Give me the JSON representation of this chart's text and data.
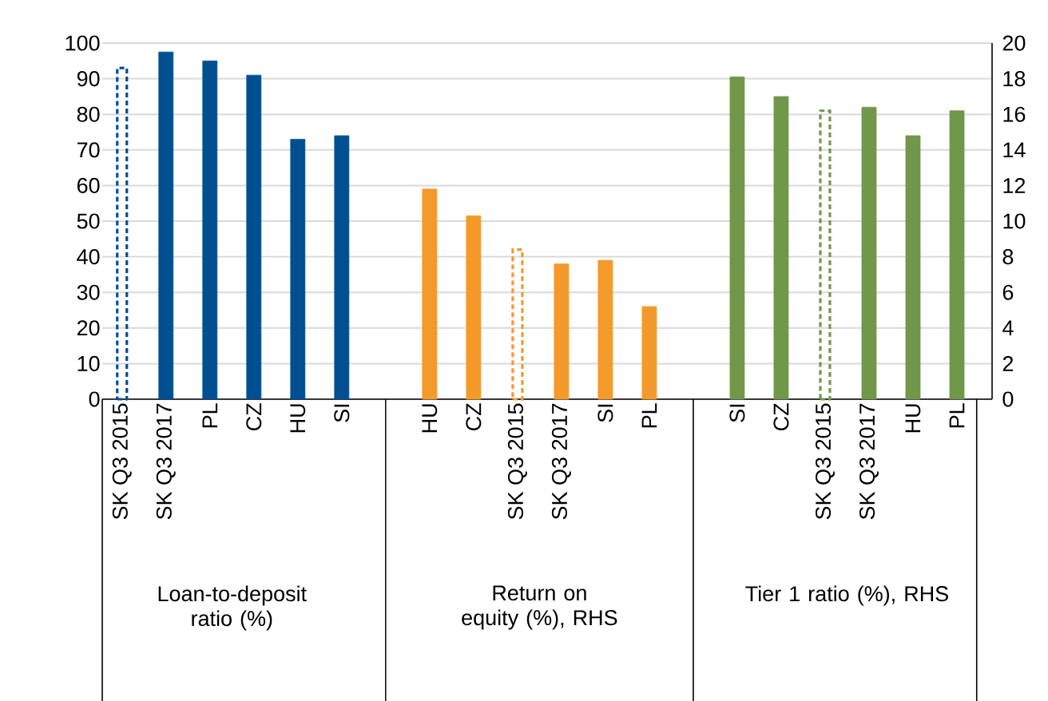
{
  "chart_data": {
    "type": "bar",
    "categories": [
      "SK Q3 2015",
      "SK Q3 2017",
      "PL",
      "CZ",
      "HU",
      "SI",
      null,
      "HU",
      "CZ",
      "SK Q3 2015",
      "SK Q3 2017",
      "SI",
      "PL",
      null,
      "SI",
      "CZ",
      "SK Q3 2015",
      "SK Q3 2017",
      "HU",
      "PL"
    ],
    "series": [
      {
        "color": "#004f90",
        "line_style": "solid",
        "values": [
          null,
          97.5,
          95,
          91,
          73,
          74,
          null,
          null,
          null,
          null,
          null,
          null,
          null,
          null,
          null,
          null,
          null,
          null,
          null,
          null
        ]
      },
      {
        "color": "#004f90",
        "line_style": "dashed",
        "values": [
          93,
          null,
          null,
          null,
          null,
          null,
          null,
          null,
          null,
          null,
          null,
          null,
          null,
          null,
          null,
          null,
          null,
          null,
          null,
          null
        ]
      },
      {
        "color": "#f39a2b",
        "line_style": "solid",
        "axis": "y2",
        "values": [
          null,
          null,
          null,
          null,
          null,
          null,
          null,
          11.8,
          10.3,
          null,
          7.6,
          7.8,
          5.2,
          null,
          null,
          null,
          null,
          null,
          null,
          null
        ]
      },
      {
        "color": "#f39a2b",
        "line_style": "dashed",
        "axis": "y2",
        "values": [
          null,
          null,
          null,
          null,
          null,
          null,
          null,
          null,
          null,
          8.4,
          null,
          null,
          null,
          null,
          null,
          null,
          null,
          null,
          null,
          null
        ]
      },
      {
        "color": "#70974a",
        "line_style": "solid",
        "axis": "y2",
        "values": [
          null,
          null,
          null,
          null,
          null,
          null,
          null,
          null,
          null,
          null,
          null,
          null,
          null,
          null,
          18.1,
          17,
          null,
          16.4,
          14.8,
          16.2
        ]
      },
      {
        "color": "#70974a",
        "line_style": "dashed",
        "axis": "y2",
        "values": [
          null,
          null,
          null,
          null,
          null,
          null,
          null,
          null,
          null,
          null,
          null,
          null,
          null,
          null,
          null,
          null,
          16.2,
          null,
          null,
          null
        ]
      }
    ],
    "ylim": [
      0,
      100
    ],
    "yticks": [
      0,
      10,
      20,
      30,
      40,
      50,
      60,
      70,
      80,
      90,
      100
    ],
    "y2lim": [
      0,
      20
    ],
    "y2ticks": [
      0,
      2,
      4,
      6,
      8,
      10,
      12,
      14,
      16,
      18,
      20
    ],
    "grid": "y",
    "annotations": [
      "Loan-to-deposit ratio (%)",
      "Return on equity (%), RHS",
      "Tier 1 ratio (%), RHS"
    ]
  }
}
